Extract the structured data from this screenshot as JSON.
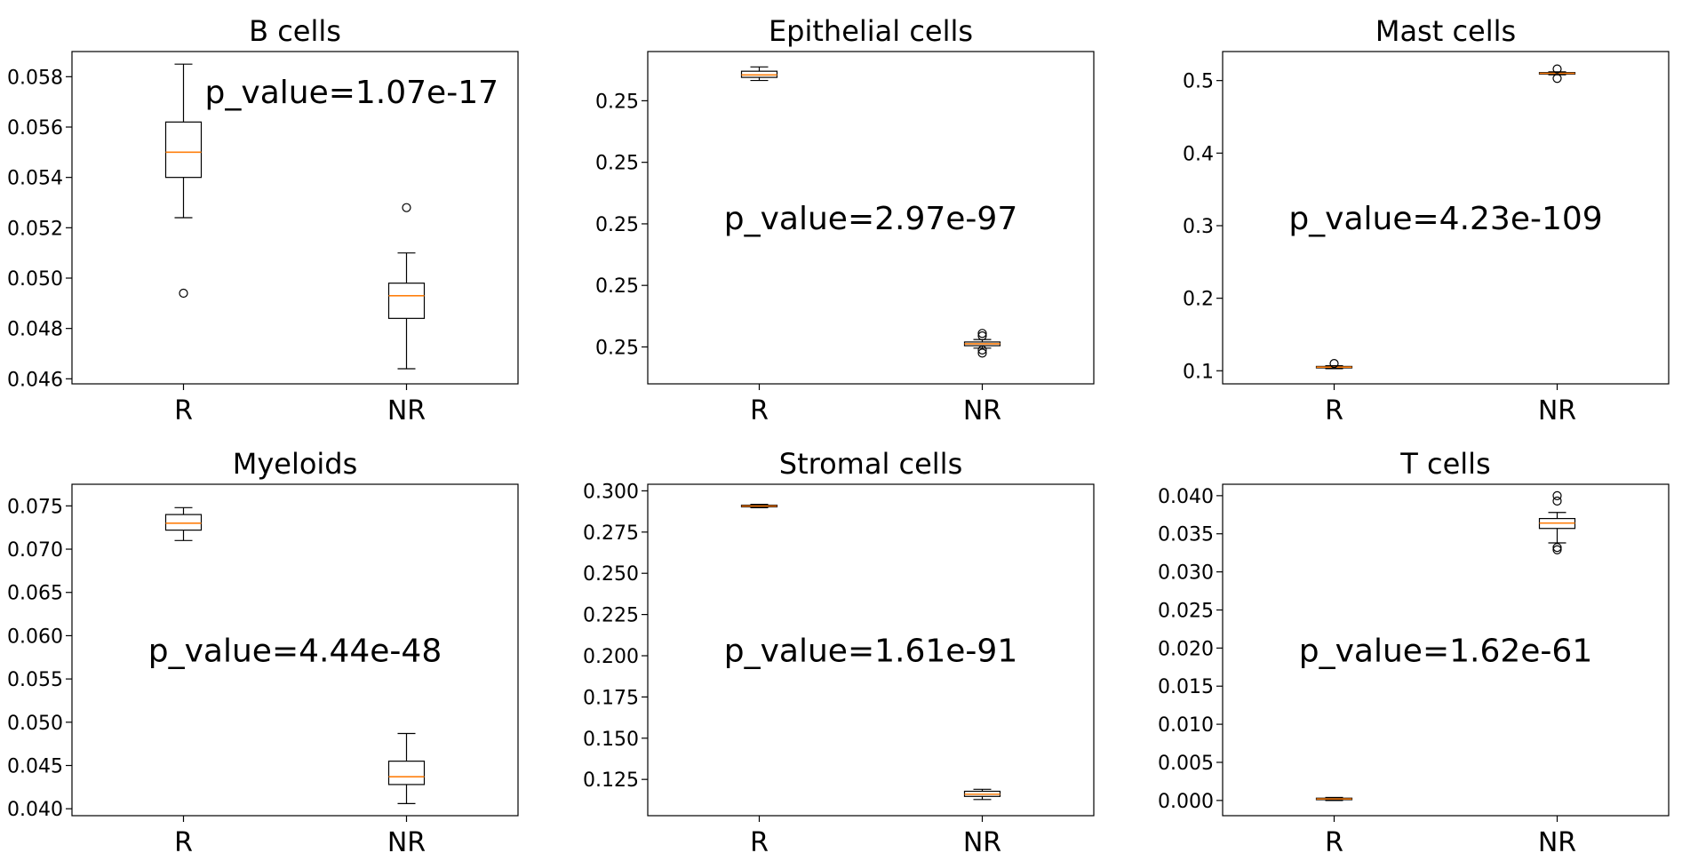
{
  "chart_data": [
    {
      "type": "box",
      "title": "B cells",
      "categories": [
        "R",
        "NR"
      ],
      "ylim": [
        0.0458,
        0.059
      ],
      "yticks": [
        0.046,
        0.048,
        0.05,
        0.052,
        0.054,
        0.056,
        0.058
      ],
      "ytick_labels": [
        "0.046",
        "0.048",
        "0.050",
        "0.052",
        "0.054",
        "0.056",
        "0.058"
      ],
      "boxes": [
        {
          "whislo": 0.0524,
          "q1": 0.054,
          "med": 0.055,
          "q3": 0.0562,
          "whishi": 0.0585,
          "fliers": [
            0.0494
          ]
        },
        {
          "whislo": 0.0464,
          "q1": 0.0484,
          "med": 0.0493,
          "q3": 0.0498,
          "whishi": 0.051,
          "fliers": [
            0.0528
          ]
        }
      ],
      "annotation": "p_value=1.07e-17",
      "annotation_pos": "top-right"
    },
    {
      "type": "box",
      "title": "Epithelial cells",
      "categories": [
        "R",
        "NR"
      ],
      "ylim": [
        0.2494,
        0.2548
      ],
      "yticks": [
        0.25,
        0.251,
        0.252,
        0.253,
        0.254
      ],
      "ytick_labels": [
        "0.25",
        "0.25",
        "0.25",
        "0.25",
        "0.25"
      ],
      "boxes": [
        {
          "whislo": 0.25433,
          "q1": 0.25438,
          "med": 0.25442,
          "q3": 0.25448,
          "whishi": 0.25455,
          "fliers": []
        },
        {
          "whislo": 0.24998,
          "q1": 0.25002,
          "med": 0.25005,
          "q3": 0.25008,
          "whishi": 0.25012,
          "fliers": [
            0.2499,
            0.24995,
            0.25018,
            0.25022
          ]
        }
      ],
      "annotation": "p_value=2.97e-97",
      "annotation_pos": "center"
    },
    {
      "type": "box",
      "title": "Mast cells",
      "categories": [
        "R",
        "NR"
      ],
      "ylim": [
        0.082,
        0.54
      ],
      "yticks": [
        0.1,
        0.2,
        0.3,
        0.4,
        0.5
      ],
      "ytick_labels": [
        "0.1",
        "0.2",
        "0.3",
        "0.4",
        "0.5"
      ],
      "boxes": [
        {
          "whislo": 0.103,
          "q1": 0.104,
          "med": 0.105,
          "q3": 0.106,
          "whishi": 0.107,
          "fliers": [
            0.11
          ]
        },
        {
          "whislo": 0.508,
          "q1": 0.509,
          "med": 0.51,
          "q3": 0.511,
          "whishi": 0.512,
          "fliers": [
            0.503,
            0.516
          ]
        }
      ],
      "annotation": "p_value=4.23e-109",
      "annotation_pos": "center"
    },
    {
      "type": "box",
      "title": "Myeloids",
      "categories": [
        "R",
        "NR"
      ],
      "ylim": [
        0.0392,
        0.0775
      ],
      "yticks": [
        0.04,
        0.045,
        0.05,
        0.055,
        0.06,
        0.065,
        0.07,
        0.075
      ],
      "ytick_labels": [
        "0.040",
        "0.045",
        "0.050",
        "0.055",
        "0.060",
        "0.065",
        "0.070",
        "0.075"
      ],
      "boxes": [
        {
          "whislo": 0.071,
          "q1": 0.0722,
          "med": 0.073,
          "q3": 0.074,
          "whishi": 0.0748,
          "fliers": []
        },
        {
          "whislo": 0.0406,
          "q1": 0.0428,
          "med": 0.0437,
          "q3": 0.0455,
          "whishi": 0.0487,
          "fliers": []
        }
      ],
      "annotation": "p_value=4.44e-48",
      "annotation_pos": "center"
    },
    {
      "type": "box",
      "title": "Stromal cells",
      "categories": [
        "R",
        "NR"
      ],
      "ylim": [
        0.103,
        0.304
      ],
      "yticks": [
        0.125,
        0.15,
        0.175,
        0.2,
        0.225,
        0.25,
        0.275,
        0.3
      ],
      "ytick_labels": [
        "0.125",
        "0.150",
        "0.175",
        "0.200",
        "0.225",
        "0.250",
        "0.275",
        "0.300"
      ],
      "boxes": [
        {
          "whislo": 0.2898,
          "q1": 0.2903,
          "med": 0.2908,
          "q3": 0.2913,
          "whishi": 0.2918,
          "fliers": []
        },
        {
          "whislo": 0.1128,
          "q1": 0.1147,
          "med": 0.116,
          "q3": 0.1178,
          "whishi": 0.119,
          "fliers": []
        }
      ],
      "annotation": "p_value=1.61e-91",
      "annotation_pos": "center"
    },
    {
      "type": "box",
      "title": "T cells",
      "categories": [
        "R",
        "NR"
      ],
      "ylim": [
        -0.002,
        0.0415
      ],
      "yticks": [
        0.0,
        0.005,
        0.01,
        0.015,
        0.02,
        0.025,
        0.03,
        0.035,
        0.04
      ],
      "ytick_labels": [
        "0.000",
        "0.005",
        "0.010",
        "0.015",
        "0.020",
        "0.025",
        "0.030",
        "0.035",
        "0.040"
      ],
      "boxes": [
        {
          "whislo": 0.0,
          "q1": 0.0001,
          "med": 0.0002,
          "q3": 0.0003,
          "whishi": 0.0004,
          "fliers": []
        },
        {
          "whislo": 0.0338,
          "q1": 0.0357,
          "med": 0.0364,
          "q3": 0.037,
          "whishi": 0.0378,
          "fliers": [
            0.0329,
            0.0332,
            0.0393,
            0.04
          ]
        }
      ],
      "annotation": "p_value=1.62e-61",
      "annotation_pos": "center"
    }
  ],
  "colors": {
    "box_edge": "#000000",
    "median": "#ff7f0e",
    "axes": "#000000",
    "background": "#ffffff"
  }
}
